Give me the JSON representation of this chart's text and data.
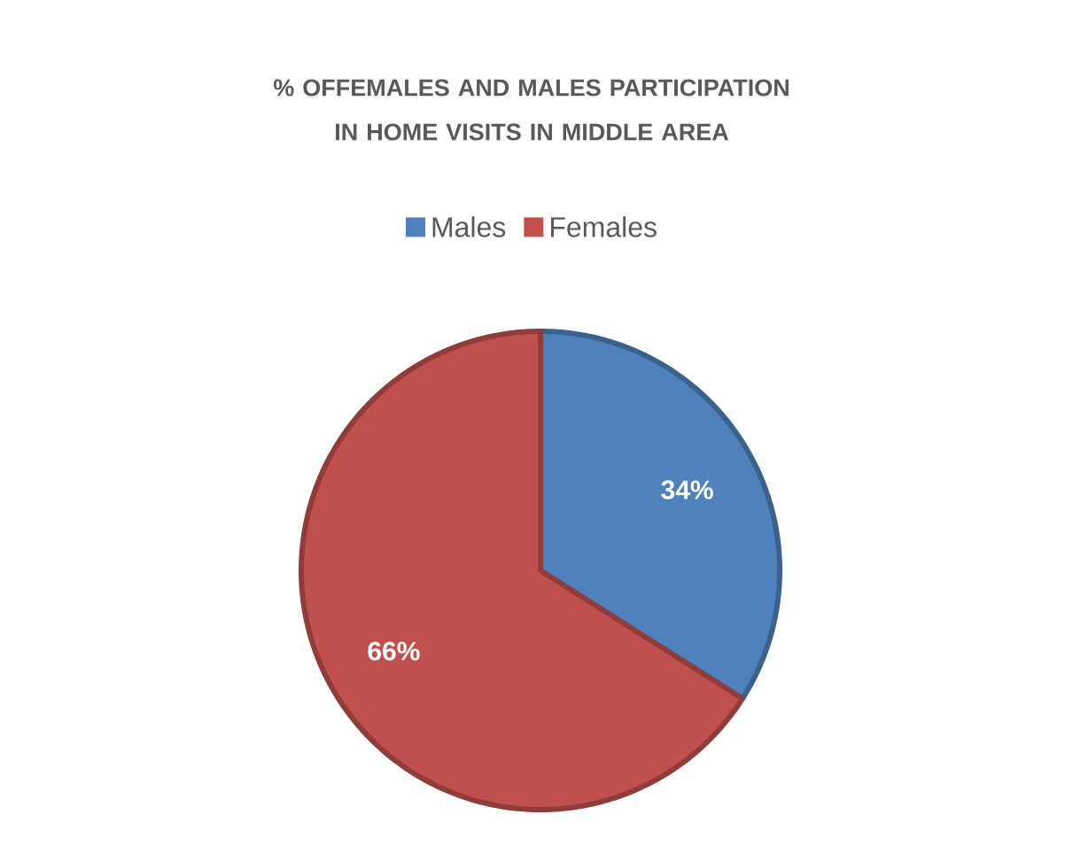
{
  "chart_data": {
    "type": "pie",
    "title": "% OFFEMALES AND MALES PARTICIPATION IN HOME VISITS IN MIDDLE AREA",
    "categories": [
      "Males",
      "Females"
    ],
    "values": [
      34,
      66
    ],
    "colors": [
      "#4f81bd",
      "#c0504d"
    ],
    "value_labels": [
      "34%",
      "66%"
    ],
    "legend": "top"
  }
}
